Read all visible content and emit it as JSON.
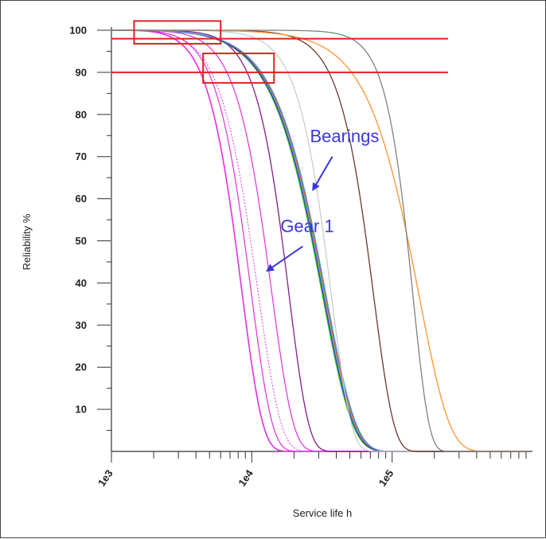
{
  "chart_data": {
    "type": "line",
    "xlabel": "Service life h",
    "ylabel": "Reliability %",
    "x_scale": "log",
    "xlim": [
      1000,
      1000000
    ],
    "ylim": [
      0,
      100
    ],
    "x_ticks_major": [
      {
        "value": 1000,
        "label": "1e3"
      },
      {
        "value": 10000,
        "label": "1e4"
      },
      {
        "value": 100000,
        "label": "1e5"
      }
    ],
    "y_ticks": [
      10,
      20,
      30,
      40,
      50,
      60,
      70,
      80,
      90,
      100
    ],
    "series": [
      {
        "color": "#e030e0",
        "width": 1.6,
        "eta": 7600,
        "beta": 2.7,
        "t0": 1000
      },
      {
        "color": "#e030e0",
        "width": 1.2,
        "eta": 9000,
        "beta": 2.7,
        "t0": 1000
      },
      {
        "color": "#e030e0",
        "width": 1.0,
        "dash": "2,2",
        "eta": 10200,
        "beta": 2.5,
        "t0": 1000
      },
      {
        "color": "#e030e0",
        "width": 1.2,
        "eta": 13000,
        "beta": 2.7,
        "t0": 1000
      },
      {
        "color": "#8a1a8a",
        "width": 1.3,
        "eta": 17500,
        "beta": 3.0,
        "t0": 1000
      },
      {
        "color": "#22c022",
        "width": 1.2,
        "eta": 31000,
        "beta": 2.0,
        "t0": 1000
      },
      {
        "color": "#6ed06e",
        "width": 1.2,
        "eta": 32000,
        "beta": 2.0,
        "t0": 1000
      },
      {
        "color": "#3030e0",
        "width": 1.2,
        "eta": 31500,
        "beta": 2.0,
        "t0": 1000
      },
      {
        "color": "#e04040",
        "width": 1.2,
        "eta": 32500,
        "beta": 2.0,
        "t0": 1000
      },
      {
        "color": "#40a0e0",
        "width": 1.2,
        "eta": 33000,
        "beta": 2.0,
        "t0": 1000
      },
      {
        "color": "#c8c8c8",
        "width": 1.2,
        "eta": 36000,
        "beta": 3.0,
        "t0": 1000
      },
      {
        "color": "#6a3a28",
        "width": 1.3,
        "eta": 73000,
        "beta": 3.0,
        "t0": 1000
      },
      {
        "color": "#ff9430",
        "width": 1.3,
        "eta": 155000,
        "beta": 2.0,
        "t0": 1000
      },
      {
        "color": "#808080",
        "width": 1.3,
        "eta": 140000,
        "beta": 3.8,
        "t0": 1000
      }
    ],
    "reference_lines": [
      {
        "y": 98,
        "x_from": 1000,
        "x_to": 250000,
        "color": "#e02020"
      },
      {
        "y": 90,
        "x_from": 1000,
        "x_to": 250000,
        "color": "#e02020"
      }
    ],
    "highlight_boxes": [
      {
        "x_from": 1450,
        "x_to": 6000,
        "y_from": 96.8,
        "y_to": 102.2,
        "color": "#e02020"
      },
      {
        "x_from": 4500,
        "x_to": 14400,
        "y_from": 87.5,
        "y_to": 94.5,
        "color": "#e02020"
      }
    ],
    "annotations": [
      {
        "text": "Bearings",
        "x": 26000,
        "y": 73.4,
        "arrow_to_x": 27500,
        "arrow_to_y": 62.3,
        "color": "#3a36d8"
      },
      {
        "text": "Gear 1",
        "x": 16000,
        "y": 52.1,
        "arrow_to_x": 13000,
        "arrow_to_y": 43,
        "color": "#3a36d8"
      }
    ]
  }
}
